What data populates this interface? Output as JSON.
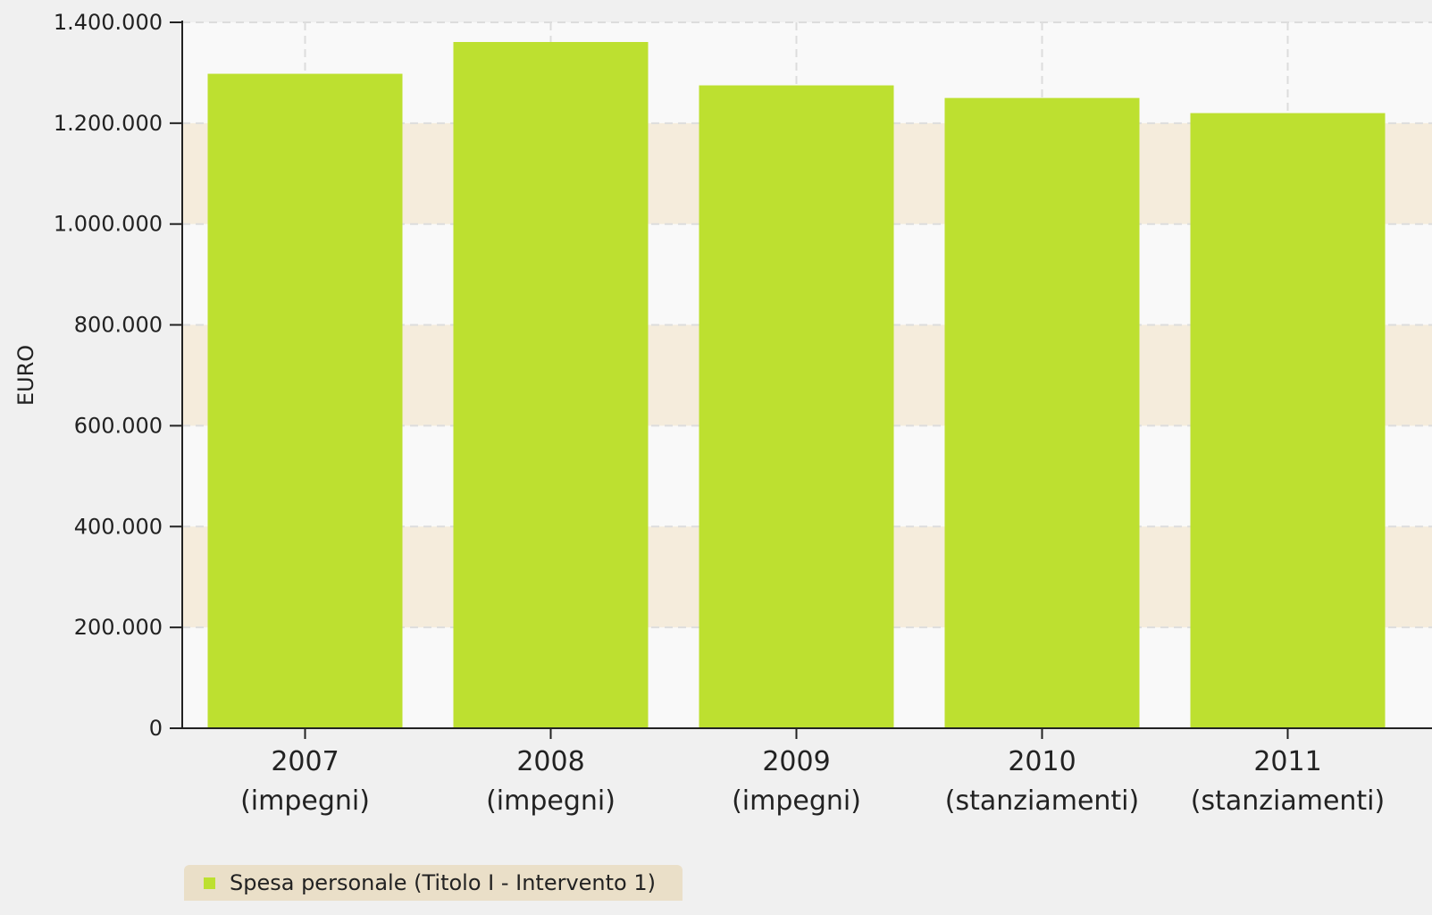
{
  "chart_data": {
    "type": "bar",
    "categories": [
      [
        "2007",
        "(impegni)"
      ],
      [
        "2008",
        "(impegni)"
      ],
      [
        "2009",
        "(impegni)"
      ],
      [
        "2010",
        "(stanziamenti)"
      ],
      [
        "2011",
        "(stanziamenti)"
      ]
    ],
    "series": [
      {
        "name": "Spesa personale (Titolo I - Intervento 1)",
        "values": [
          1298000,
          1361000,
          1275000,
          1250000,
          1220000
        ],
        "color": "#bde030"
      }
    ],
    "ylabel": "EURO",
    "ylim": [
      0,
      1400000
    ],
    "yticks": [
      "0",
      "200.000",
      "400.000",
      "600.000",
      "800.000",
      "1.000.000",
      "1.200.000",
      "1.400.000"
    ],
    "grid": true,
    "legend_position": "bottom-left",
    "colors": {
      "plot_background": "#f9f9f9",
      "band": "#f5ecdc",
      "legend_background": "#eadfc8",
      "page_background": "#f0f0f0"
    }
  }
}
